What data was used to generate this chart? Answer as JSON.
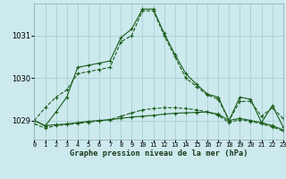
{
  "title": "Graphe pression niveau de la mer (hPa)",
  "background_color": "#cce9ed",
  "grid_color": "#aacfd4",
  "line_color": "#1a5c1a",
  "x_labels": [
    "0",
    "1",
    "2",
    "3",
    "4",
    "5",
    "6",
    "7",
    "8",
    "9",
    "10",
    "11",
    "12",
    "13",
    "14",
    "15",
    "16",
    "17",
    "18",
    "19",
    "20",
    "21",
    "22",
    "23"
  ],
  "xlim": [
    0,
    23
  ],
  "ylim": [
    1028.55,
    1031.75
  ],
  "yticks": [
    1029,
    1030,
    1031
  ],
  "series": {
    "line_high": [
      1029.0,
      1028.87,
      1029.2,
      1029.55,
      1030.25,
      1030.3,
      1030.35,
      1030.4,
      1030.95,
      1031.15,
      1031.62,
      1031.62,
      1031.05,
      1030.55,
      1030.1,
      1029.85,
      1029.62,
      1029.55,
      1029.0,
      1029.55,
      1029.5,
      1028.95,
      1029.35,
      1028.85
    ],
    "line_mid": [
      1029.0,
      1029.3,
      1029.55,
      1029.72,
      1030.1,
      1030.15,
      1030.2,
      1030.25,
      1030.85,
      1031.0,
      1031.58,
      1031.58,
      1031.0,
      1030.5,
      1030.0,
      1029.8,
      1029.6,
      1029.5,
      1029.0,
      1029.45,
      1029.45,
      1029.1,
      1029.3,
      1029.05
    ],
    "line_flat1": [
      1029.0,
      1028.88,
      1028.9,
      1028.92,
      1028.95,
      1028.98,
      1029.0,
      1029.02,
      1029.05,
      1029.08,
      1029.1,
      1029.12,
      1029.15,
      1029.17,
      1029.18,
      1029.19,
      1029.2,
      1029.15,
      1029.0,
      1029.05,
      1029.0,
      1028.95,
      1028.88,
      1028.78
    ],
    "line_flat2": [
      1028.92,
      1028.82,
      1028.88,
      1028.9,
      1028.93,
      1028.96,
      1028.99,
      1029.02,
      1029.1,
      1029.18,
      1029.25,
      1029.28,
      1029.3,
      1029.3,
      1029.28,
      1029.25,
      1029.2,
      1029.12,
      1028.95,
      1029.02,
      1028.98,
      1028.92,
      1028.85,
      1028.75
    ]
  }
}
